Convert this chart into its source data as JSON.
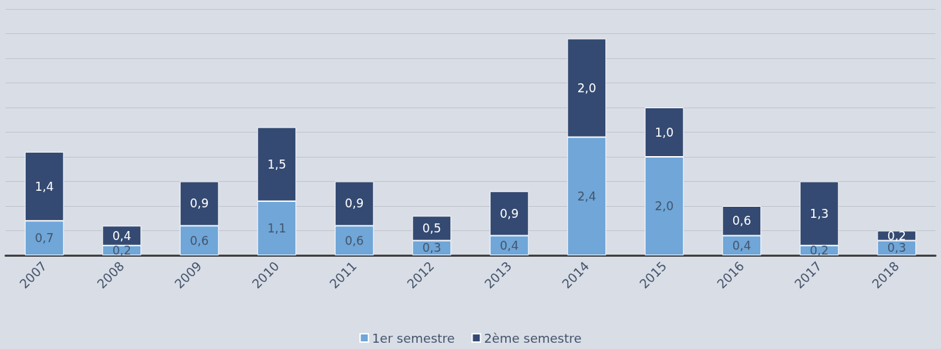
{
  "chart_data": {
    "type": "bar",
    "stacked": true,
    "grid": "y",
    "legend": "bottom",
    "tick_labels": "x",
    "categories": [
      "2007",
      "2008",
      "2009",
      "2010",
      "2011",
      "2012",
      "2013",
      "2014",
      "2015",
      "2016",
      "2017",
      "2018"
    ],
    "series": [
      {
        "name": "1er semestre",
        "color": "#70a6d8",
        "values": [
          0.7,
          0.2,
          0.6,
          1.1,
          0.6,
          0.3,
          0.4,
          2.4,
          2.0,
          0.4,
          0.2,
          0.3
        ],
        "value_labels": [
          "0,7",
          "0,2",
          "0,6",
          "1,1",
          "0,6",
          "0,3",
          "0,4",
          "2,4",
          "2,0",
          "0,4",
          "0,2",
          "0,3"
        ]
      },
      {
        "name": "2ème semestre",
        "color": "#344a72",
        "values": [
          1.4,
          0.4,
          0.9,
          1.5,
          0.9,
          0.5,
          0.9,
          2.0,
          1.0,
          0.6,
          1.3,
          0.2
        ],
        "value_labels": [
          "1,4",
          "0,4",
          "0,9",
          "1,5",
          "0,9",
          "0,5",
          "0,9",
          "2,0",
          "1,0",
          "0,6",
          "1,3",
          "0,2"
        ]
      }
    ],
    "ylim": [
      0,
      5
    ],
    "yticks": [
      {
        "value": 0,
        "label": null
      },
      {
        "value": 0.5,
        "label": null
      },
      {
        "value": 1,
        "label": null
      },
      {
        "value": 1.5,
        "label": null
      },
      {
        "value": 2,
        "label": null
      },
      {
        "value": 2.5,
        "label": null
      },
      {
        "value": 3,
        "label": null
      },
      {
        "value": 3.5,
        "label": null
      },
      {
        "value": 4,
        "label": null
      },
      {
        "value": 4.5,
        "label": null
      },
      {
        "value": 5,
        "label": null
      }
    ]
  }
}
